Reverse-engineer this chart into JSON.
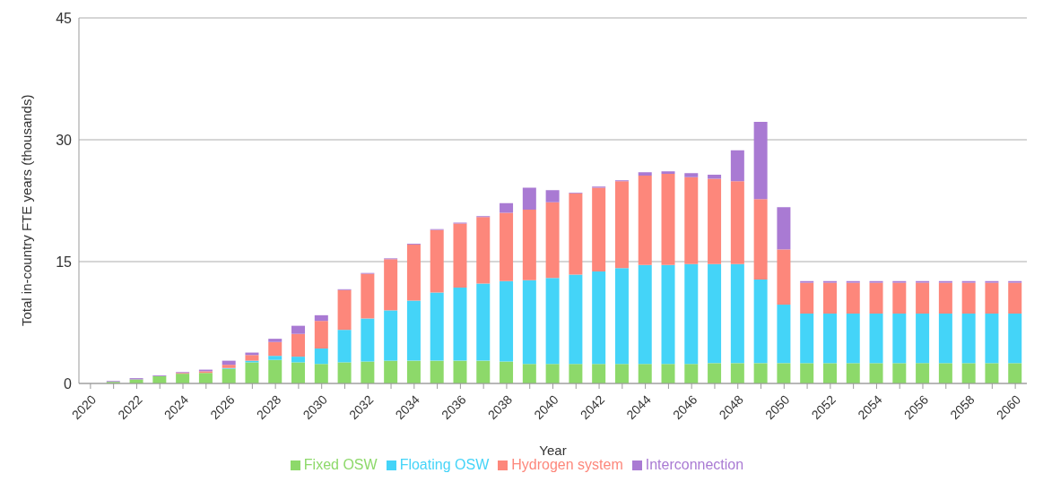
{
  "chart_data": {
    "type": "bar",
    "stacked": true,
    "xlabel": "Year",
    "ylabel": "Total in-country FTE years (thousands)",
    "categories": [
      "2020",
      null,
      "2022",
      null,
      "2024",
      null,
      "2026",
      null,
      "2028",
      null,
      "2030",
      null,
      "2032",
      null,
      "2034",
      null,
      "2036",
      null,
      "2038",
      null,
      "2040",
      null,
      "2042",
      null,
      "2044",
      null,
      "2046",
      null,
      "2048",
      null,
      "2050",
      null,
      "2052",
      null,
      "2054",
      null,
      "2056",
      null,
      "2058",
      null,
      "2060"
    ],
    "series": [
      {
        "name": "Fixed OSW",
        "color": "#8dd96a",
        "values": [
          0,
          0.2,
          0.5,
          0.9,
          1.2,
          1.3,
          1.8,
          2.6,
          2.9,
          2.6,
          2.4,
          2.6,
          2.7,
          2.8,
          2.8,
          2.8,
          2.8,
          2.8,
          2.7,
          2.4,
          2.4,
          2.4,
          2.4,
          2.4,
          2.4,
          2.4,
          2.4,
          2.5,
          2.5,
          2.5,
          2.5,
          2.5,
          2.5,
          2.5,
          2.5,
          2.5,
          2.5,
          2.5,
          2.5,
          2.5,
          2.5
        ]
      },
      {
        "name": "Floating OSW",
        "color": "#44d4f8",
        "values": [
          0,
          0,
          0,
          0,
          0,
          0,
          0.1,
          0.2,
          0.5,
          0.7,
          1.9,
          4.0,
          5.3,
          6.2,
          7.4,
          8.4,
          9.0,
          9.5,
          9.9,
          10.3,
          10.6,
          11.0,
          11.4,
          11.8,
          12.2,
          12.2,
          12.3,
          12.2,
          12.2,
          10.3,
          7.2,
          6.1,
          6.1,
          6.1,
          6.1,
          6.1,
          6.1,
          6.1,
          6.1,
          6.1,
          6.1
        ]
      },
      {
        "name": "Hydrogen system",
        "color": "#fd877b",
        "values": [
          0,
          0,
          0,
          0,
          0.1,
          0.2,
          0.4,
          0.7,
          1.7,
          2.8,
          3.4,
          4.9,
          5.5,
          6.3,
          6.9,
          7.7,
          7.9,
          8.2,
          8.4,
          8.7,
          9.3,
          10.0,
          10.3,
          10.7,
          11.0,
          11.2,
          10.7,
          10.5,
          10.2,
          9.9,
          6.8,
          3.8,
          3.8,
          3.8,
          3.8,
          3.8,
          3.8,
          3.8,
          3.8,
          3.8,
          3.8
        ]
      },
      {
        "name": "Interconnection",
        "color": "#a97ad3",
        "values": [
          0,
          0.1,
          0.15,
          0.1,
          0.1,
          0.2,
          0.5,
          0.3,
          0.4,
          1.0,
          0.7,
          0.1,
          0.1,
          0.1,
          0.1,
          0.1,
          0.1,
          0.1,
          1.2,
          2.7,
          1.5,
          0.1,
          0.15,
          0.1,
          0.4,
          0.3,
          0.5,
          0.5,
          3.8,
          9.5,
          5.2,
          0.2,
          0.2,
          0.2,
          0.2,
          0.2,
          0.2,
          0.2,
          0.2,
          0.2,
          0.2
        ]
      }
    ],
    "ylim": [
      0,
      45
    ],
    "yticks": [
      0,
      15,
      30,
      45
    ],
    "grid": "y",
    "legend": "bottom"
  }
}
